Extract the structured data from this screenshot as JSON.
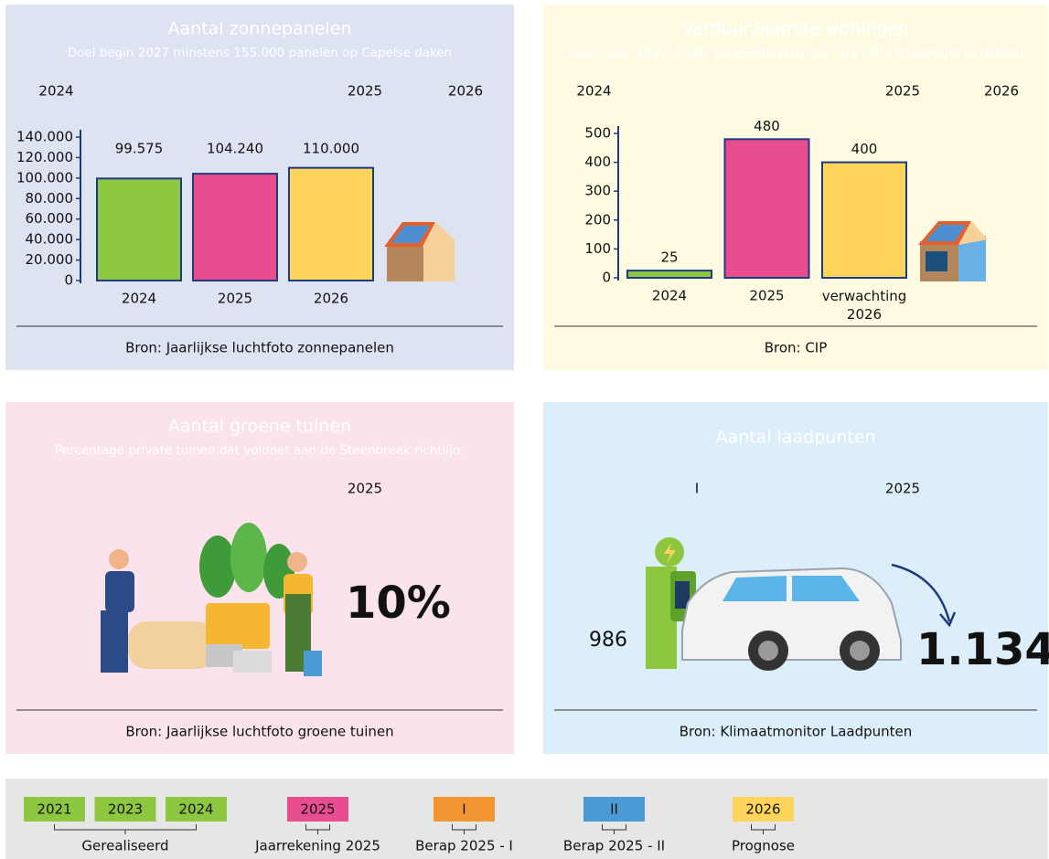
{
  "panels": [
    {
      "title": "Aantal zonnepanelen",
      "subtitle": "Doel begin 2027 minstens 155.000 panelen op Capelse daken",
      "timeline": [
        "2024",
        null,
        null,
        "2025",
        "2026"
      ],
      "source": "Bron: Jaarlijkse luchtfoto zonnepanelen"
    },
    {
      "title": "Verduurzaamde woningen",
      "subtitle": "Doel: voor 2031, 1.287 koopwoningen min. via CIP 1 maatregel te nemen",
      "timeline": [
        "2024",
        null,
        null,
        "2025",
        "2026"
      ],
      "source": "Bron: CIP"
    },
    {
      "title": "Aantal groene tuinen",
      "subtitle": "Percentage private tuinen dat voldoet aan de Steenbreek richtlijn.",
      "timeline": [
        null,
        null,
        null,
        "2025",
        null
      ],
      "source": "Bron: Jaarlijkse luchtfoto groene tuinen"
    },
    {
      "title": "Aantal laadpunten",
      "timeline": [
        null,
        "I",
        null,
        "2025",
        null
      ],
      "source": "Bron: Klimaatmonitor Laadpunten"
    }
  ],
  "chart_data": [
    {
      "type": "bar",
      "categories": [
        "2024",
        "2025",
        "2026"
      ],
      "values": [
        99575,
        104240,
        110000
      ],
      "value_labels": [
        "99.575",
        "104.240",
        "110.000"
      ],
      "colors": [
        "#8dc63f",
        "#e84e8f",
        "#ffd45a"
      ],
      "ylim": [
        0,
        140000
      ],
      "yticks": [
        {
          "value": 0,
          "label": "0"
        },
        {
          "value": 20000,
          "label": "20.000"
        },
        {
          "value": 40000,
          "label": "40.000"
        },
        {
          "value": 60000,
          "label": "60.000"
        },
        {
          "value": 80000,
          "label": "80.000"
        },
        {
          "value": 100000,
          "label": "100.000"
        },
        {
          "value": 120000,
          "label": "120.000"
        },
        {
          "value": 140000,
          "label": "140.000"
        }
      ]
    },
    {
      "type": "bar",
      "categories": [
        "2024",
        "2025",
        "verwachting 2026"
      ],
      "values": [
        25,
        480,
        400
      ],
      "colors": [
        "#8dc63f",
        "#e84e8f",
        "#ffd45a"
      ],
      "ylim": [
        0,
        500
      ],
      "yticks": [
        0,
        100,
        200,
        300,
        400,
        500
      ]
    }
  ],
  "tuinen": {
    "value": 10,
    "value_label": "10%"
  },
  "laadpunten": {
    "values": [
      986,
      1134
    ],
    "value_labels": [
      "986",
      "1.134"
    ]
  },
  "legend": [
    {
      "items": [
        "2021",
        "2023",
        "2024"
      ],
      "label": "Gerealiseerd",
      "color": "#8dc63f"
    },
    {
      "items": [
        "2025"
      ],
      "label": "Jaarrekening 2025",
      "color": "#e84e8f"
    },
    {
      "items": [
        "I"
      ],
      "label": "Berap 2025 - I",
      "color": "#f39530"
    },
    {
      "items": [
        "II"
      ],
      "label": "Berap 2025 - II",
      "color": "#4a9ad6"
    },
    {
      "items": [
        "2026"
      ],
      "label": "Prognose",
      "color": "#ffd45a"
    }
  ]
}
